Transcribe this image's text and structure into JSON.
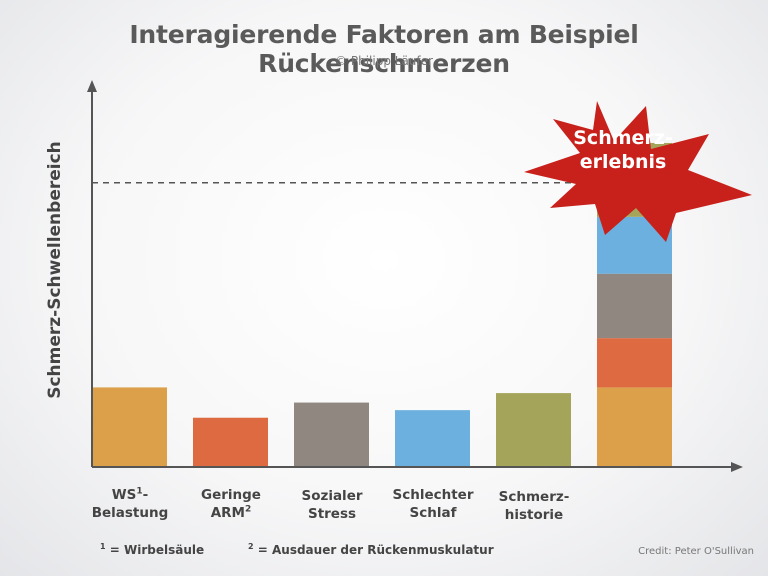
{
  "title": "Interagierende Faktoren am Beispiel Rückenschmerzen",
  "copyright": "© Philipp Läufer",
  "burst": {
    "line1": "Schmerz-",
    "line2": "erlebnis"
  },
  "footnotes": {
    "note1_mark": "1",
    "note1_text": " = Wirbelsäule",
    "note2_mark": "2",
    "note2_text": " = Ausdauer der Rückenmuskulatur"
  },
  "credit": "Credit: Peter O'Sullivan",
  "chart_data": {
    "type": "bar",
    "ylabel": "Schmerz-Schwellenbereich",
    "xlabel": "",
    "ylim": [
      0,
      100
    ],
    "threshold": 75,
    "categories": [
      {
        "line1": "WS",
        "sup": "1",
        "line1_after": "-",
        "line2": "Belastung"
      },
      {
        "line1": "Geringe",
        "line2": "ARM",
        "sup2": "2"
      },
      {
        "line1": "Sozialer",
        "line2": "Stress"
      },
      {
        "line1": "Schlechter",
        "line2": "Schlaf"
      },
      {
        "line1": "Schmerz-",
        "line2": "historie"
      }
    ],
    "values": [
      21,
      13,
      17,
      15,
      19.5
    ],
    "colors": [
      "#dda04a",
      "#dd6a40",
      "#8f8780",
      "#6bb0de",
      "#a4a55a"
    ],
    "stacked_bar": {
      "order_bottom_to_top": [
        0,
        1,
        2,
        3,
        4
      ],
      "values": [
        21,
        13,
        17,
        15,
        19.5
      ],
      "description": "sum of all factors exceeds threshold"
    }
  }
}
